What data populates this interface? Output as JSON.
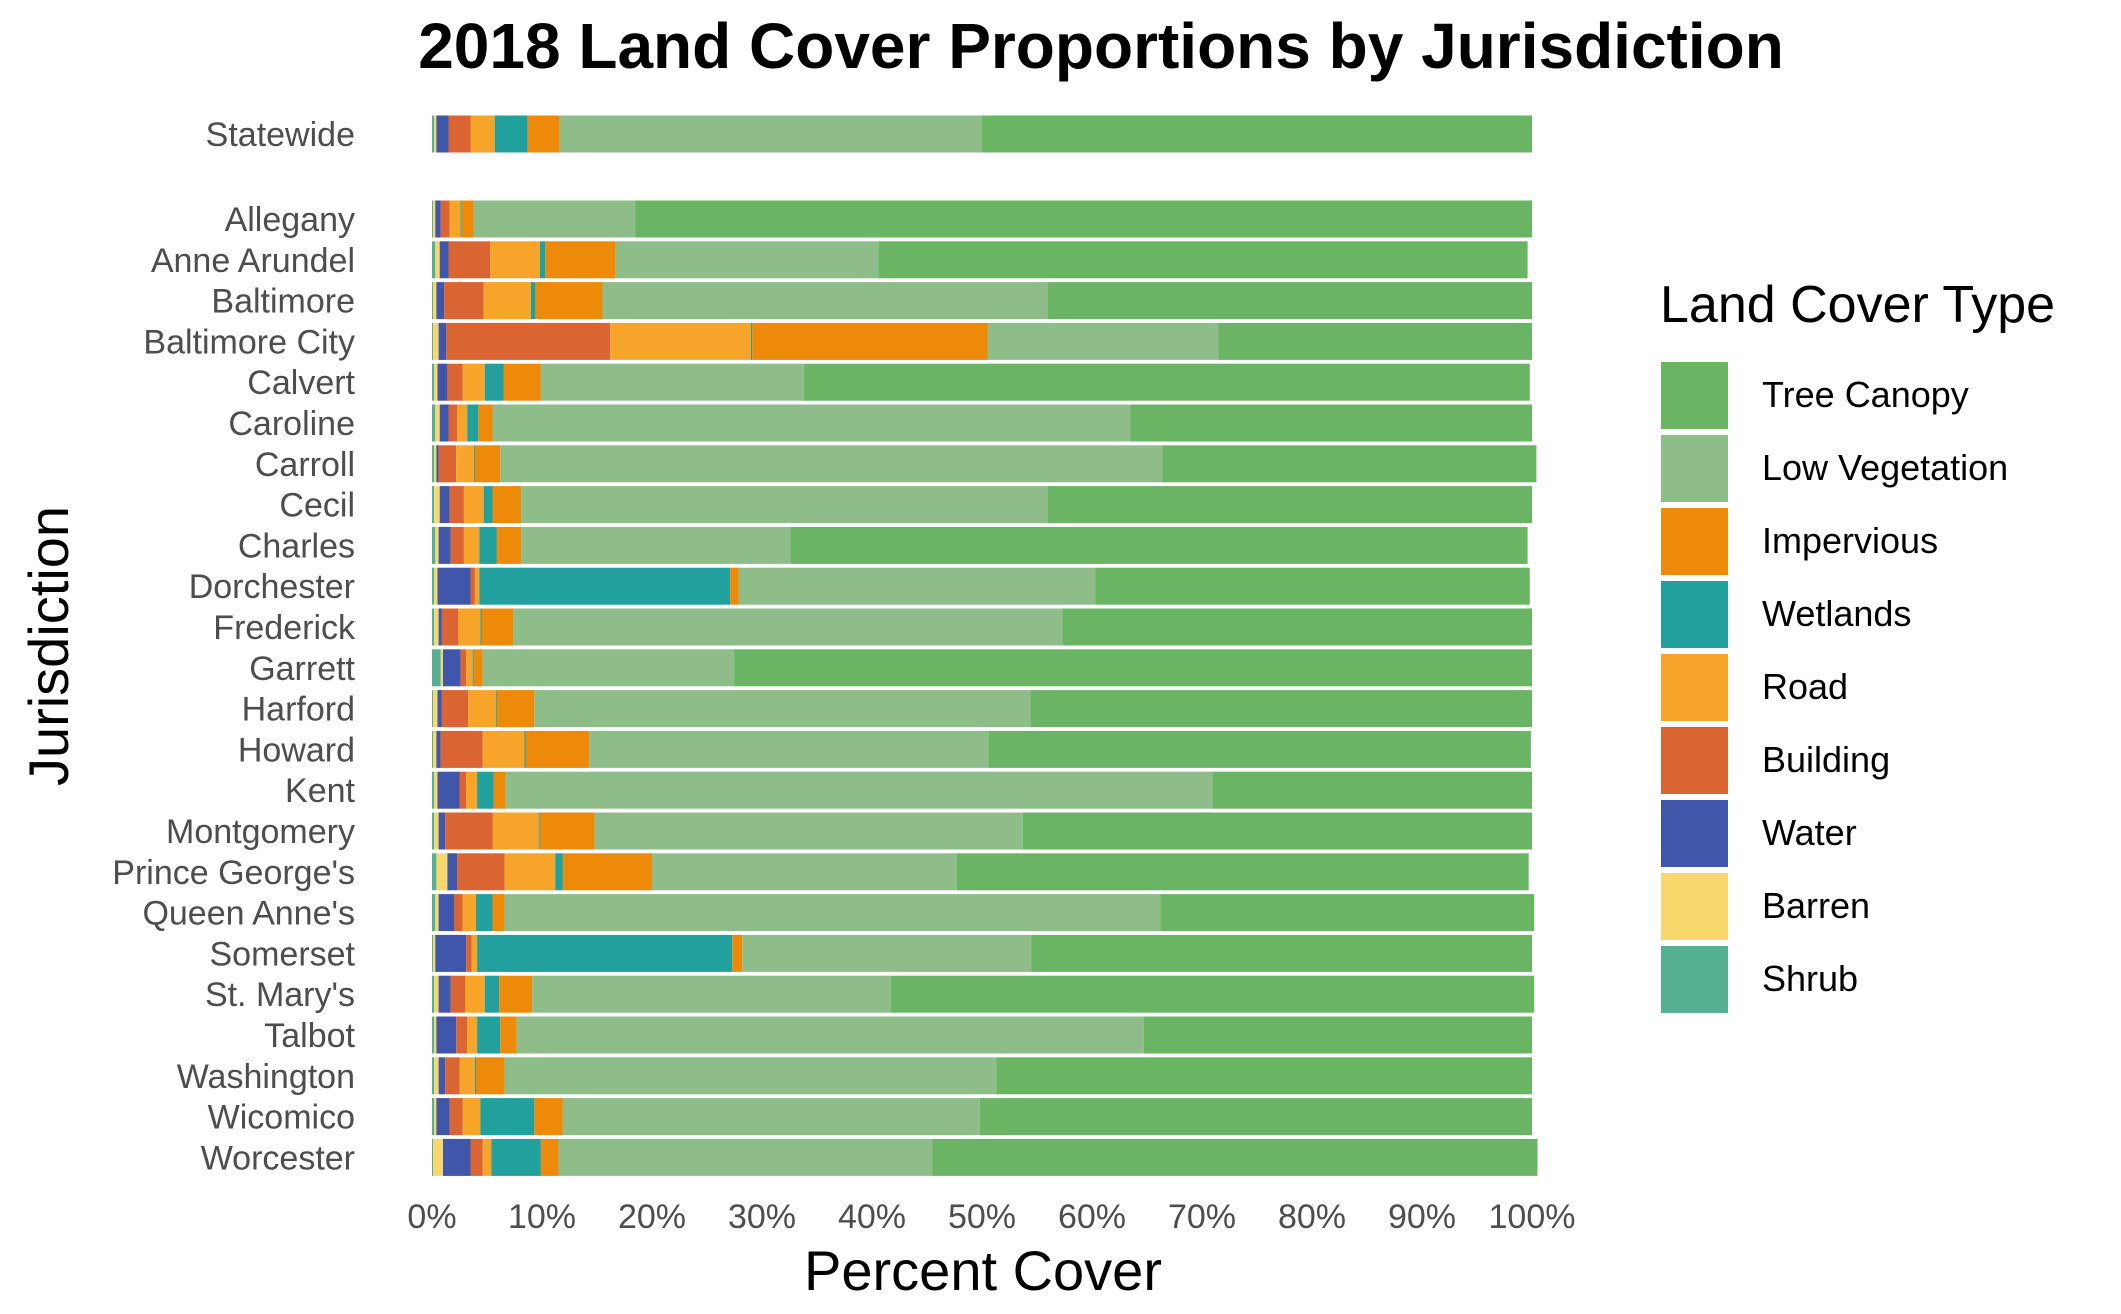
{
  "chart_data": {
    "type": "bar",
    "orientation": "horizontal",
    "stacked": true,
    "title": "2018 Land Cover Proportions by Jurisdiction",
    "xlabel": "Percent Cover",
    "ylabel": "Jurisdiction",
    "xlim": [
      0,
      100
    ],
    "x_ticks": [
      "0%",
      "10%",
      "20%",
      "30%",
      "40%",
      "50%",
      "60%",
      "70%",
      "80%",
      "90%",
      "100%"
    ],
    "grid": false,
    "legend": {
      "title": "Land Cover Type",
      "position": "right"
    },
    "categories": [
      "Statewide",
      "Allegany",
      "Anne Arundel",
      "Baltimore",
      "Baltimore City",
      "Calvert",
      "Caroline",
      "Carroll",
      "Cecil",
      "Charles",
      "Dorchester",
      "Frederick",
      "Garrett",
      "Harford",
      "Howard",
      "Kent",
      "Montgomery",
      "Prince George's",
      "Queen Anne's",
      "Somerset",
      "St. Mary's",
      "Talbot",
      "Washington",
      "Wicomico",
      "Worcester"
    ],
    "stack_order": [
      "Shrub",
      "Barren",
      "Water",
      "Building",
      "Road",
      "Wetlands",
      "Impervious",
      "Low Vegetation",
      "Tree Canopy"
    ],
    "series": [
      {
        "name": "Tree Canopy",
        "color": "#6ab564",
        "values": [
          50.0,
          81.5,
          59.0,
          44.0,
          28.5,
          66.0,
          36.5,
          34.0,
          44.0,
          67.0,
          39.5,
          42.7,
          72.5,
          45.6,
          49.3,
          29.0,
          46.3,
          52.0,
          34.0,
          45.5,
          58.5,
          35.3,
          48.7,
          50.2,
          55.0
        ]
      },
      {
        "name": "Low Vegetation",
        "color": "#8fbd8a",
        "values": [
          38.4,
          14.7,
          23.9,
          40.5,
          21.0,
          23.9,
          58.0,
          60.2,
          47.9,
          24.5,
          32.4,
          49.9,
          22.9,
          45.1,
          36.3,
          64.3,
          38.9,
          27.7,
          59.6,
          26.3,
          32.6,
          57.0,
          44.7,
          37.9,
          34.0
        ]
      },
      {
        "name": "Impervious",
        "color": "#ee8a0a",
        "values": [
          2.9,
          1.1,
          6.4,
          6.1,
          21.4,
          3.4,
          1.3,
          2.3,
          2.6,
          2.2,
          0.8,
          2.9,
          0.8,
          3.4,
          5.8,
          1.1,
          5.0,
          8.1,
          1.1,
          0.9,
          3.0,
          1.5,
          2.6,
          2.6,
          1.6
        ]
      },
      {
        "name": "Wetlands",
        "color": "#21a09d",
        "values": [
          3.0,
          0.1,
          0.5,
          0.4,
          0.1,
          1.7,
          1.0,
          0.1,
          0.8,
          1.6,
          22.8,
          0.1,
          0.1,
          0.1,
          0.1,
          1.5,
          0.1,
          0.7,
          1.5,
          23.2,
          1.3,
          2.1,
          0.1,
          4.9,
          4.5
        ]
      },
      {
        "name": "Road",
        "color": "#f7a52a",
        "values": [
          2.2,
          1.0,
          4.5,
          4.3,
          12.8,
          2.0,
          0.9,
          1.6,
          1.8,
          1.4,
          0.4,
          2.0,
          0.6,
          2.5,
          3.8,
          1.0,
          4.2,
          4.6,
          1.2,
          0.5,
          1.8,
          0.9,
          1.4,
          1.6,
          0.8
        ]
      },
      {
        "name": "Building",
        "color": "#db6532",
        "values": [
          2.0,
          0.8,
          3.8,
          3.6,
          14.9,
          1.4,
          0.8,
          1.6,
          1.3,
          1.2,
          0.4,
          1.5,
          0.5,
          2.4,
          3.8,
          0.6,
          4.3,
          4.3,
          0.8,
          0.5,
          1.3,
          1.0,
          1.3,
          1.2,
          1.1
        ]
      },
      {
        "name": "Water",
        "color": "#3f56aa",
        "values": [
          1.1,
          0.5,
          0.8,
          0.7,
          0.7,
          0.9,
          0.8,
          0.2,
          0.9,
          1.1,
          3.0,
          0.3,
          1.6,
          0.4,
          0.4,
          2.0,
          0.6,
          0.9,
          1.4,
          2.8,
          1.1,
          1.8,
          0.6,
          1.2,
          2.5
        ]
      },
      {
        "name": "Barren",
        "color": "#f8d86d",
        "values": [
          0.2,
          0.2,
          0.4,
          0.3,
          0.5,
          0.3,
          0.4,
          0.2,
          0.5,
          0.3,
          0.3,
          0.4,
          0.2,
          0.4,
          0.3,
          0.3,
          0.4,
          1.0,
          0.3,
          0.2,
          0.4,
          0.2,
          0.4,
          0.2,
          0.9
        ]
      },
      {
        "name": "Shrub",
        "color": "#57b091",
        "values": [
          0.2,
          0.1,
          0.3,
          0.1,
          0.1,
          0.2,
          0.3,
          0.2,
          0.2,
          0.3,
          0.2,
          0.2,
          0.8,
          0.1,
          0.1,
          0.2,
          0.2,
          0.4,
          0.3,
          0.1,
          0.2,
          0.2,
          0.2,
          0.2,
          0.1
        ]
      }
    ]
  }
}
